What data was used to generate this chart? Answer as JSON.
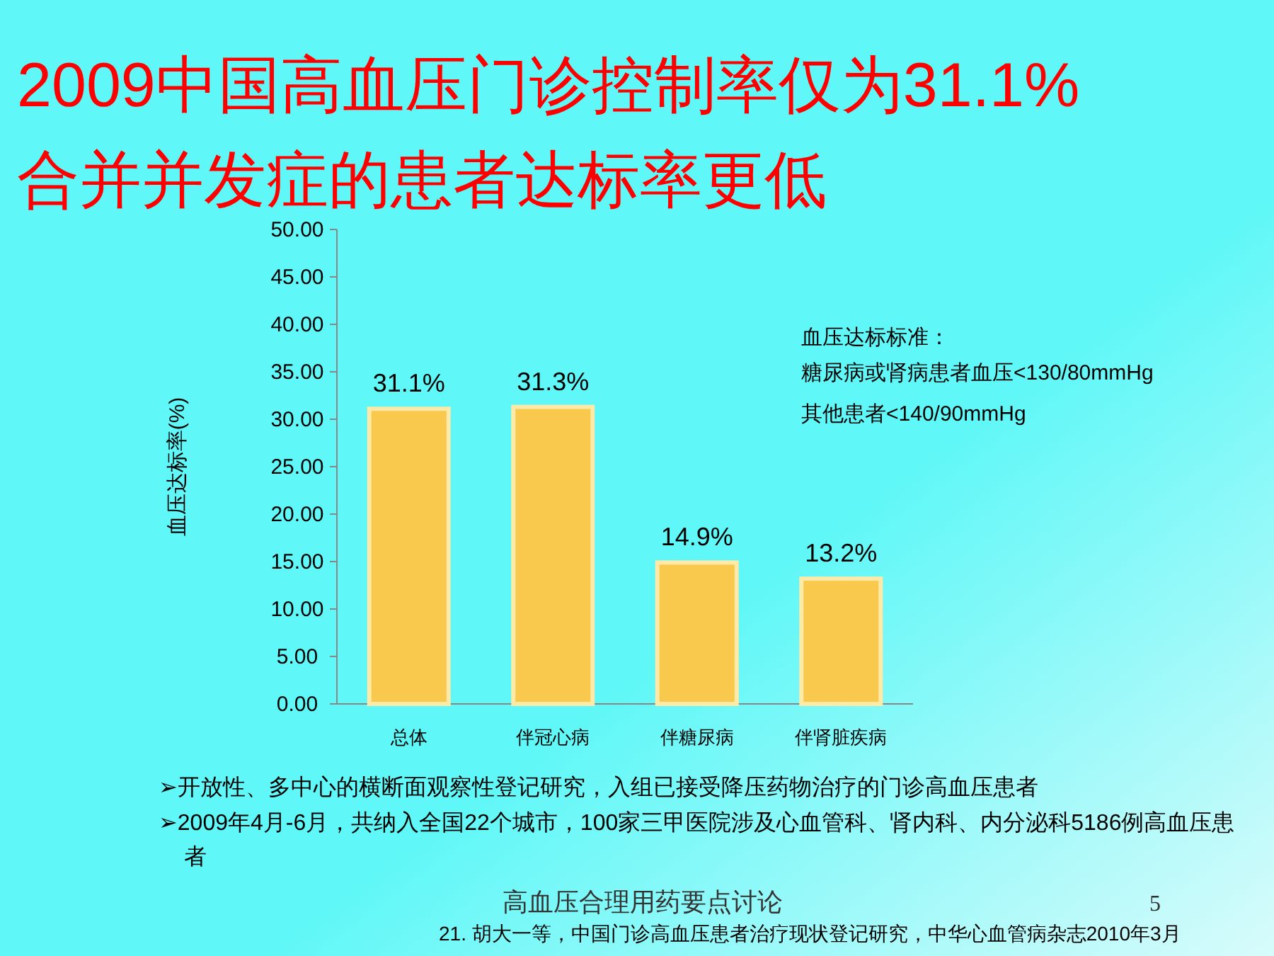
{
  "chart_data": {
    "type": "bar",
    "title": "2009中国高血压门诊控制率仅为31.1%",
    "subtitle": "合并并发症的患者达标率更低",
    "ylabel": "血压达标率(%)",
    "categories": [
      "总体",
      "伴冠心病",
      "伴糖尿病",
      "伴肾脏疾病"
    ],
    "values": [
      31.1,
      31.3,
      14.9,
      13.2
    ],
    "color": "#f9c94e",
    "value_labels": [
      "31.1%",
      "31.3%",
      "14.9%",
      "13.2%"
    ],
    "ylim": [
      0,
      50
    ],
    "yticks": [
      {
        "value": 0,
        "label": "0.00"
      },
      {
        "value": 5,
        "label": "5.00"
      },
      {
        "value": 10,
        "label": "10.00"
      },
      {
        "value": 15,
        "label": "15.00"
      },
      {
        "value": 20,
        "label": "20.00"
      },
      {
        "value": 25,
        "label": "25.00"
      },
      {
        "value": 30,
        "label": "30.00"
      },
      {
        "value": 35,
        "label": "35.00"
      },
      {
        "value": 40,
        "label": "40.00"
      },
      {
        "value": 45,
        "label": "45.00"
      },
      {
        "value": 50,
        "label": "50.00"
      }
    ],
    "annotations": [
      "血压达标标准：",
      "糖尿病或肾病患者血压<130/80mmHg",
      "其他患者<140/90mmHg",
      "➢开放性、多中心的横断面观察性登记研究，入组已接受降压药物治疗的门诊高血压患者",
      "➢2009年4月-6月，共纳入全国22个城市，100家三甲医院涉及心血管科、肾内科、内分泌科5186例高血压患者",
      "高血压合理用药要点讨论",
      "5",
      "21. 胡大一等，中国门诊高血压患者治疗现状登记研究，中华心血管病杂志2010年3月"
    ]
  }
}
